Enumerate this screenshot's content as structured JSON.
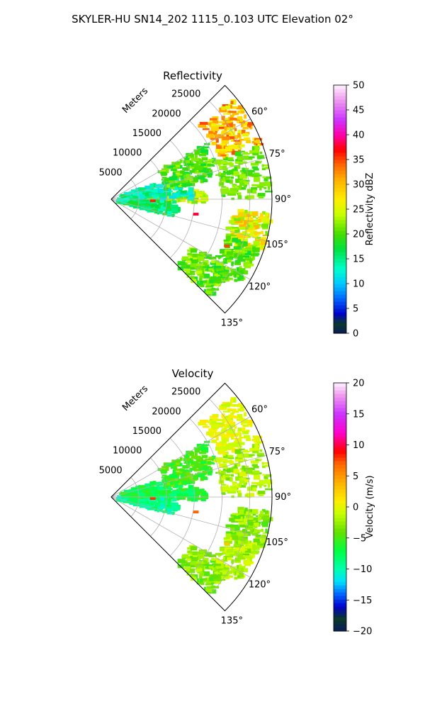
{
  "suptitle": "SKYLER-HU  SN14_202  1115_0.103 UTC Elevation 02°",
  "chart_data": [
    {
      "type": "heatmap",
      "projection": "polar-sector",
      "title": "Reflectivity",
      "radial_axis_label": "Meters",
      "radial_ticks": [
        5000,
        10000,
        15000,
        20000,
        25000
      ],
      "radial_tick_labels": [
        "5000",
        "10000",
        "15000",
        "20000",
        "25000"
      ],
      "rmax": 29000,
      "azimuth_range_deg": [
        45,
        135
      ],
      "angular_ticks_deg": [
        60,
        75,
        90,
        105,
        120,
        135
      ],
      "angular_tick_labels": [
        "60°",
        "75°",
        "90°",
        "105°",
        "120°",
        "135°"
      ],
      "grid": true,
      "colorbar": {
        "label": "Reflectivity dBZ",
        "range": [
          0,
          50
        ],
        "ticks": [
          0,
          5,
          10,
          15,
          20,
          25,
          30,
          35,
          40,
          45,
          50
        ],
        "tick_labels": [
          "0",
          "5",
          "10",
          "15",
          "20",
          "25",
          "30",
          "35",
          "40",
          "45",
          "50"
        ],
        "color_stops": [
          [
            0,
            "#0a1a5a"
          ],
          [
            2,
            "#0b3a2a"
          ],
          [
            4,
            "#0000cc"
          ],
          [
            7,
            "#0066ff"
          ],
          [
            10,
            "#00c8ff"
          ],
          [
            13,
            "#00ffcc"
          ],
          [
            17,
            "#00e040"
          ],
          [
            20,
            "#44dd00"
          ],
          [
            24,
            "#c8ff00"
          ],
          [
            27,
            "#ffee00"
          ],
          [
            31,
            "#ffb000"
          ],
          [
            34,
            "#ff6600"
          ],
          [
            37,
            "#ff0000"
          ],
          [
            40,
            "#ff00aa"
          ],
          [
            43,
            "#cc33ff"
          ],
          [
            47,
            "#ee99ee"
          ],
          [
            50,
            "#fff0ff"
          ]
        ]
      },
      "echo_regions": [
        {
          "az": [
            50,
            70
          ],
          "r": [
            21000,
            29000
          ],
          "value": 30,
          "spread": 5
        },
        {
          "az": [
            95,
            110
          ],
          "r": [
            22000,
            29000
          ],
          "value": 26,
          "spread": 5
        },
        {
          "az": [
            84,
            92
          ],
          "r": [
            3000,
            17000
          ],
          "value": 24,
          "spread": 4
        },
        {
          "az": [
            92,
            106
          ],
          "r": [
            1500,
            12000
          ],
          "value": 16,
          "spread": 3
        },
        {
          "az": [
            70,
            90
          ],
          "r": [
            2000,
            15000
          ],
          "value": 14,
          "spread": 3
        },
        {
          "az": [
            60,
            80
          ],
          "r": [
            10000,
            20000
          ],
          "value": 20,
          "spread": 3
        },
        {
          "az": [
            120,
            135
          ],
          "r": [
            17000,
            25000
          ],
          "value": 21,
          "spread": 3
        },
        {
          "az": [
            108,
            125
          ],
          "r": [
            22000,
            28000
          ],
          "value": 20,
          "spread": 3
        },
        {
          "az": [
            70,
            90
          ],
          "r": [
            20000,
            29000
          ],
          "value": 21,
          "spread": 2
        }
      ],
      "hotspots": [
        {
          "az": 92,
          "r": 7500,
          "value": 36
        },
        {
          "az": 112,
          "r": 22500,
          "value": 35
        },
        {
          "az": 100,
          "r": 15500,
          "value": 38
        }
      ]
    },
    {
      "type": "heatmap",
      "projection": "polar-sector",
      "title": "Velocity",
      "radial_axis_label": "Meters",
      "radial_ticks": [
        5000,
        10000,
        15000,
        20000,
        25000
      ],
      "radial_tick_labels": [
        "5000",
        "10000",
        "15000",
        "20000",
        "25000"
      ],
      "rmax": 29000,
      "azimuth_range_deg": [
        45,
        135
      ],
      "angular_ticks_deg": [
        60,
        75,
        90,
        105,
        120,
        135
      ],
      "angular_tick_labels": [
        "60°",
        "75°",
        "90°",
        "105°",
        "120°",
        "135°"
      ],
      "grid": true,
      "colorbar": {
        "label": "Velocity (m/s)",
        "range": [
          -20,
          20
        ],
        "ticks": [
          -20,
          -15,
          -10,
          -5,
          0,
          5,
          10,
          15,
          20
        ],
        "tick_labels": [
          "−20",
          "−15",
          "−10",
          "−5",
          "0",
          "5",
          "10",
          "15",
          "20"
        ],
        "color_stops": [
          [
            -20,
            "#0a1a5a"
          ],
          [
            -18,
            "#0b3a2a"
          ],
          [
            -16,
            "#0000cc"
          ],
          [
            -14,
            "#0066ff"
          ],
          [
            -12,
            "#00e0ff"
          ],
          [
            -10,
            "#00ffb0"
          ],
          [
            -7,
            "#00ff40"
          ],
          [
            -4,
            "#66e000"
          ],
          [
            -1,
            "#c8ff00"
          ],
          [
            1,
            "#ffee00"
          ],
          [
            4,
            "#ffb000"
          ],
          [
            7,
            "#ff6600"
          ],
          [
            9,
            "#ff0000"
          ],
          [
            12,
            "#ff00cc"
          ],
          [
            15,
            "#cc33ff"
          ],
          [
            18,
            "#ee99ee"
          ],
          [
            20,
            "#fff0ff"
          ]
        ]
      },
      "echo_regions": [
        {
          "az": [
            50,
            70
          ],
          "r": [
            21000,
            29000
          ],
          "value": 0,
          "spread": 1.5
        },
        {
          "az": [
            95,
            110
          ],
          "r": [
            22000,
            29000
          ],
          "value": -3,
          "spread": 2
        },
        {
          "az": [
            84,
            92
          ],
          "r": [
            3000,
            17000
          ],
          "value": -6,
          "spread": 2
        },
        {
          "az": [
            92,
            106
          ],
          "r": [
            1500,
            12000
          ],
          "value": -9,
          "spread": 2
        },
        {
          "az": [
            70,
            90
          ],
          "r": [
            2000,
            15000
          ],
          "value": -7,
          "spread": 2
        },
        {
          "az": [
            60,
            80
          ],
          "r": [
            10000,
            20000
          ],
          "value": -5,
          "spread": 2
        },
        {
          "az": [
            120,
            135
          ],
          "r": [
            17000,
            25000
          ],
          "value": -3,
          "spread": 2
        },
        {
          "az": [
            108,
            125
          ],
          "r": [
            22000,
            28000
          ],
          "value": -2,
          "spread": 2
        },
        {
          "az": [
            70,
            90
          ],
          "r": [
            20000,
            29000
          ],
          "value": -2,
          "spread": 2
        }
      ],
      "hotspots": [
        {
          "az": 92,
          "r": 7500,
          "value": 8
        },
        {
          "az": 112,
          "r": 22500,
          "value": 3
        },
        {
          "az": 100,
          "r": 15500,
          "value": 7
        }
      ]
    }
  ]
}
